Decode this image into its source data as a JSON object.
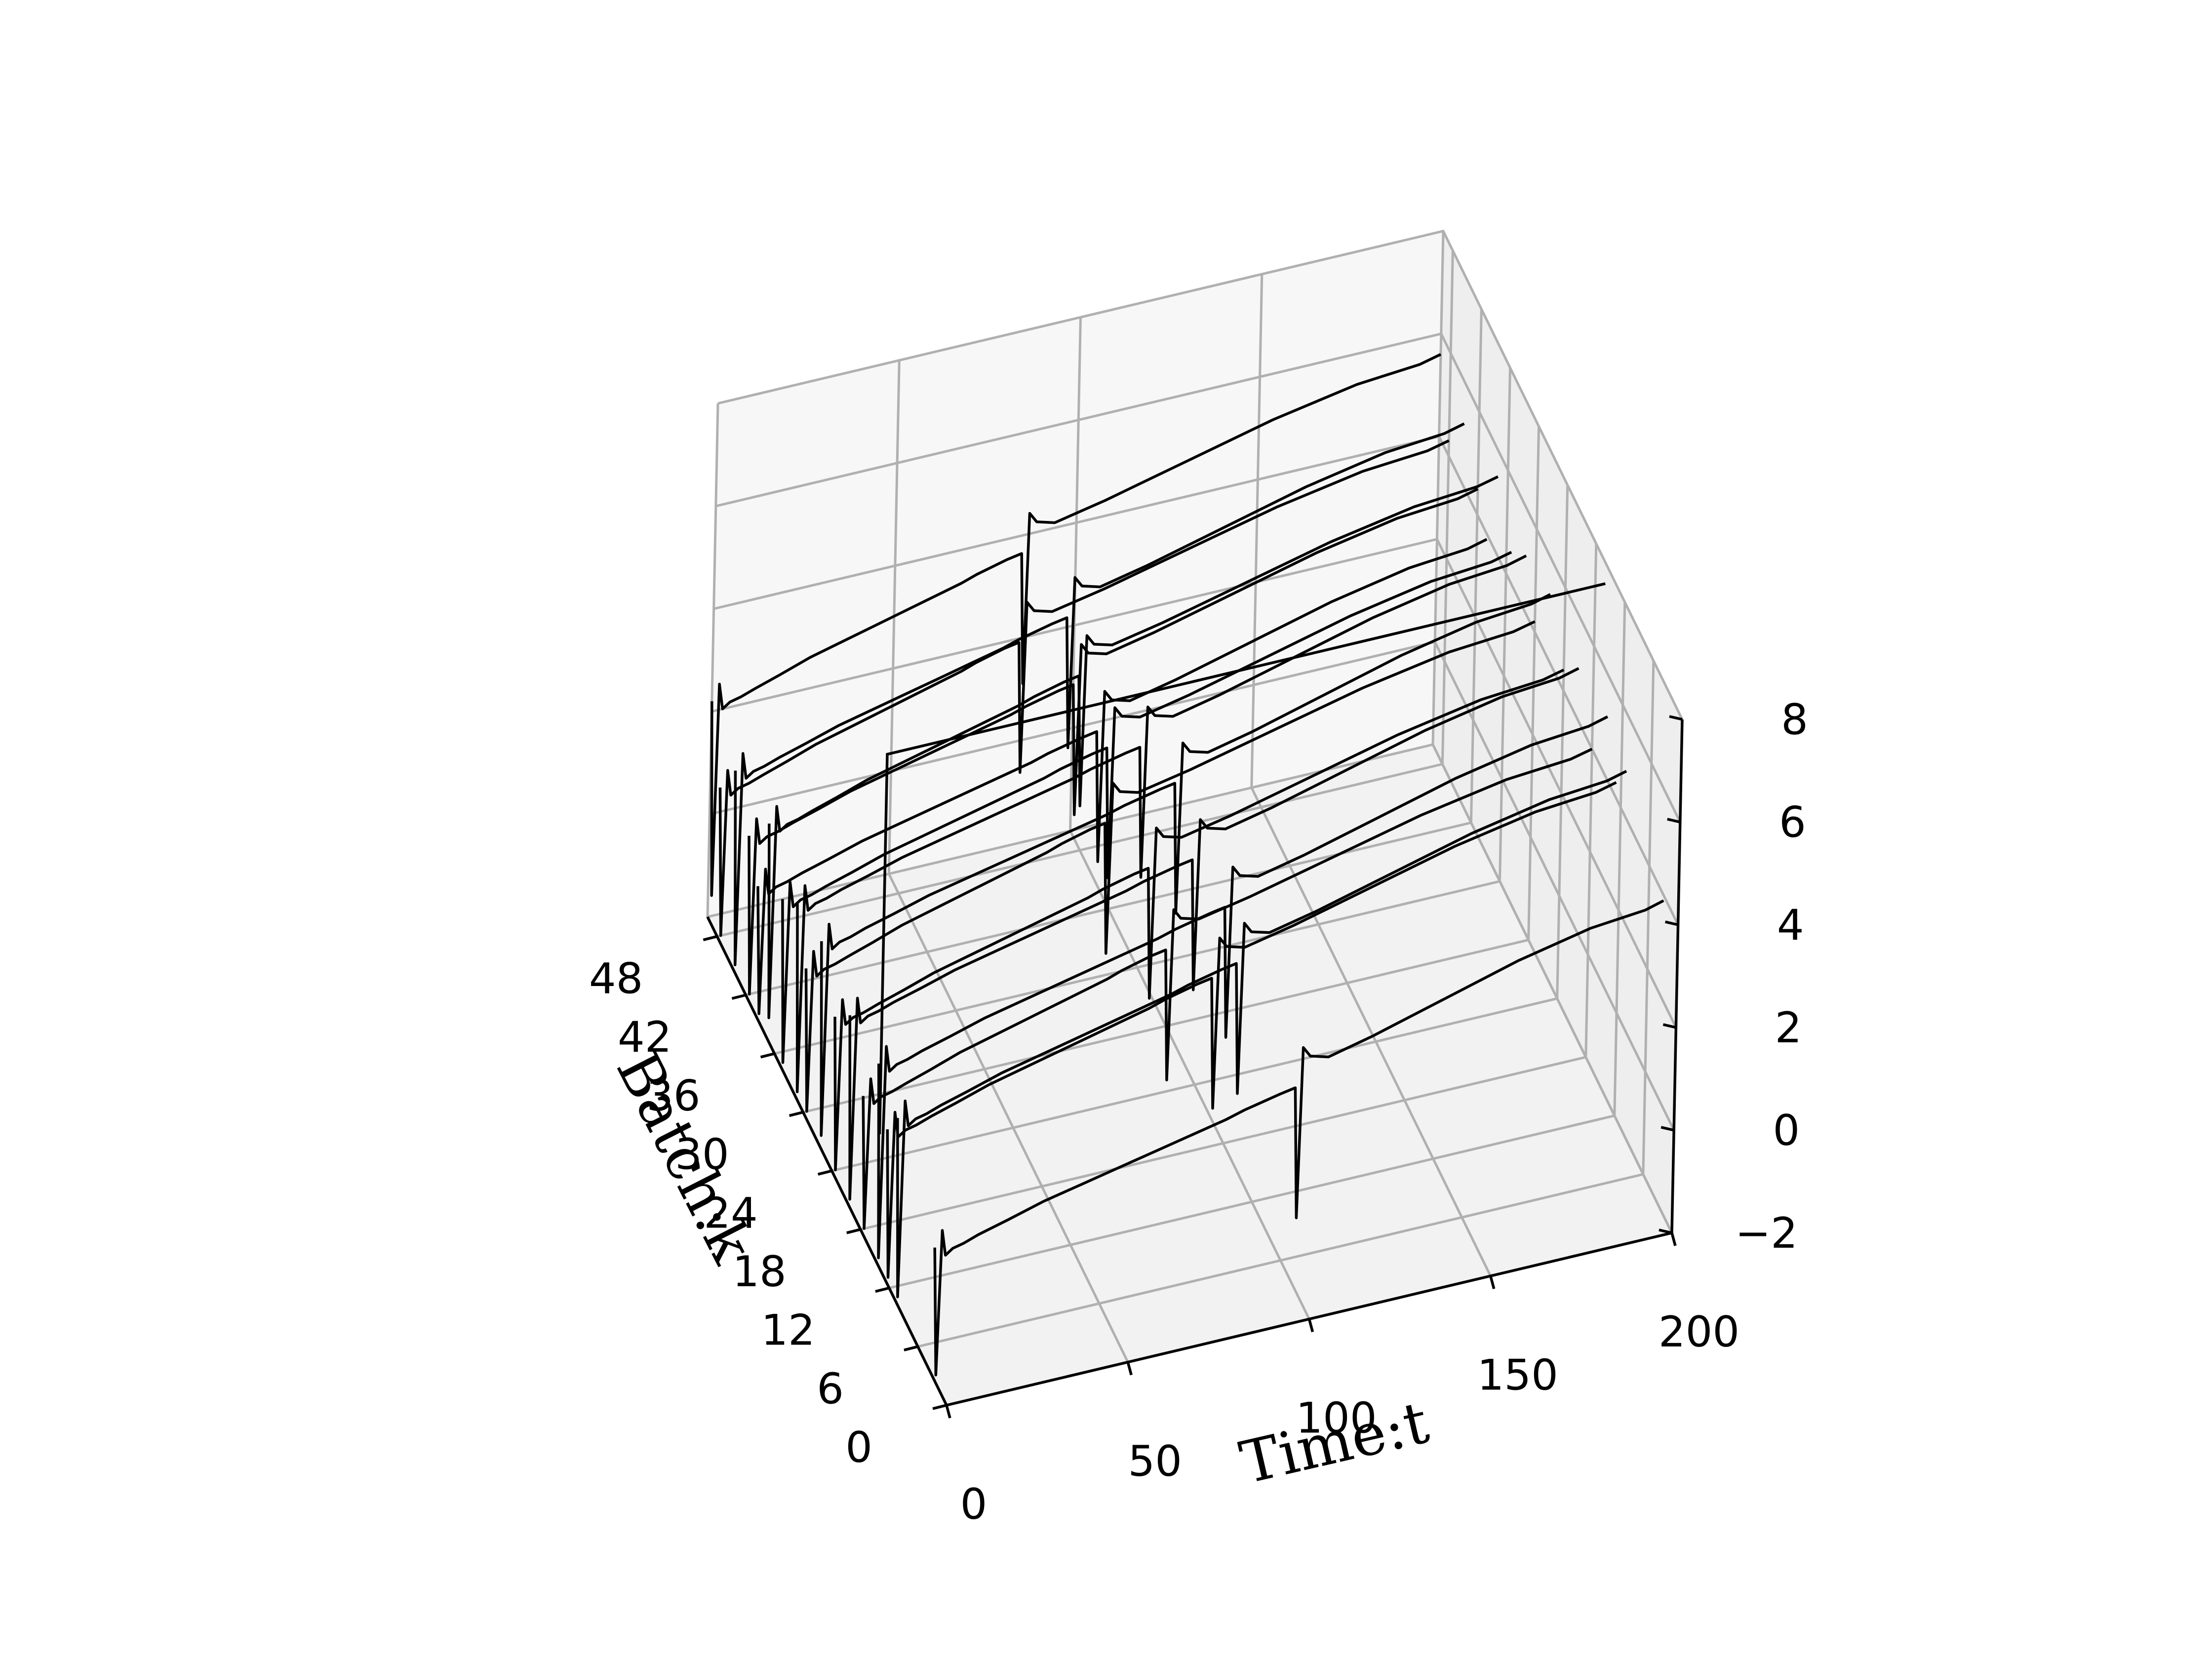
{
  "chart_data": {
    "type": "line",
    "projection": "3d-waterfall",
    "title": "",
    "xlabel": "Time:t",
    "ylabel": "Batch:k",
    "zlabel": "",
    "xlim": [
      0,
      200
    ],
    "ylim": [
      0,
      50
    ],
    "zlim": [
      -2,
      8
    ],
    "x_ticks": [
      "0",
      "50",
      "100",
      "150",
      "200"
    ],
    "y_ticks": [
      "0",
      "6",
      "12",
      "18",
      "24",
      "30",
      "36",
      "42",
      "48"
    ],
    "z_ticks": [
      "−2",
      "0",
      "2",
      "4",
      "6",
      "8"
    ],
    "grid": true,
    "line_color": "#000000",
    "pane_color": "#f2f2f2",
    "grid_color": "#b0b0b0",
    "curve_shape": {
      "x": [
        0,
        1,
        2,
        3,
        5,
        8,
        12,
        20,
        30,
        40,
        50,
        60,
        70,
        80,
        85,
        95,
        99,
        100,
        101,
        103,
        108,
        120,
        140,
        160,
        180,
        195,
        200
      ],
      "baseline": [
        0.6,
        -3.2,
        0.9,
        0.4,
        0.5,
        0.55,
        0.65,
        0.8,
        1.0,
        1.15,
        1.3,
        1.45,
        1.6,
        1.75,
        1.85,
        2.0,
        2.05,
        -0.5,
        2.8,
        2.6,
        2.5,
        2.7,
        3.1,
        3.5,
        3.8,
        3.9,
        4.0
      ]
    },
    "series": [
      {
        "batch": 50,
        "offset": 1.6,
        "dist_x": 86
      },
      {
        "batch": 48,
        "offset": 0.3,
        "dist_x": 83
      },
      {
        "batch": 45,
        "offset": 1.2,
        "dist_x": 92
      },
      {
        "batch": 42,
        "offset": 0.5,
        "dist_x": 90
      },
      {
        "batch": 40,
        "offset": -0.1,
        "dist_x": 94
      },
      {
        "batch": 38,
        "offset": 1.5,
        "dist_x": 86
      },
      {
        "batch": 35,
        "offset": 0.6,
        "dist_x": 90
      },
      {
        "batch": 32,
        "offset": 1.1,
        "dist_x": 95
      },
      {
        "batch": 30,
        "offset": 0.2,
        "dist_x": 83
      },
      {
        "batch": 27,
        "offset": 1.3,
        "dist_x": 98
      },
      {
        "batch": 24,
        "offset": 0.4,
        "dist_x": 87
      },
      {
        "batch": 21,
        "offset": 1.0,
        "dist_x": 95
      },
      {
        "batch": 18,
        "offset": 0.0,
        "dist_x": 84
      },
      {
        "batch": 15,
        "offset": 1.2,
        "dist_x": 96
      },
      {
        "batch": 13,
        "offset": 0.3,
        "dist_x": 90
      },
      {
        "batch": 11,
        "offset": 0.9,
        "dist_x": 94
      },
      {
        "batch": 3,
        "offset": -0.1,
        "dist_x": 100
      }
    ]
  }
}
